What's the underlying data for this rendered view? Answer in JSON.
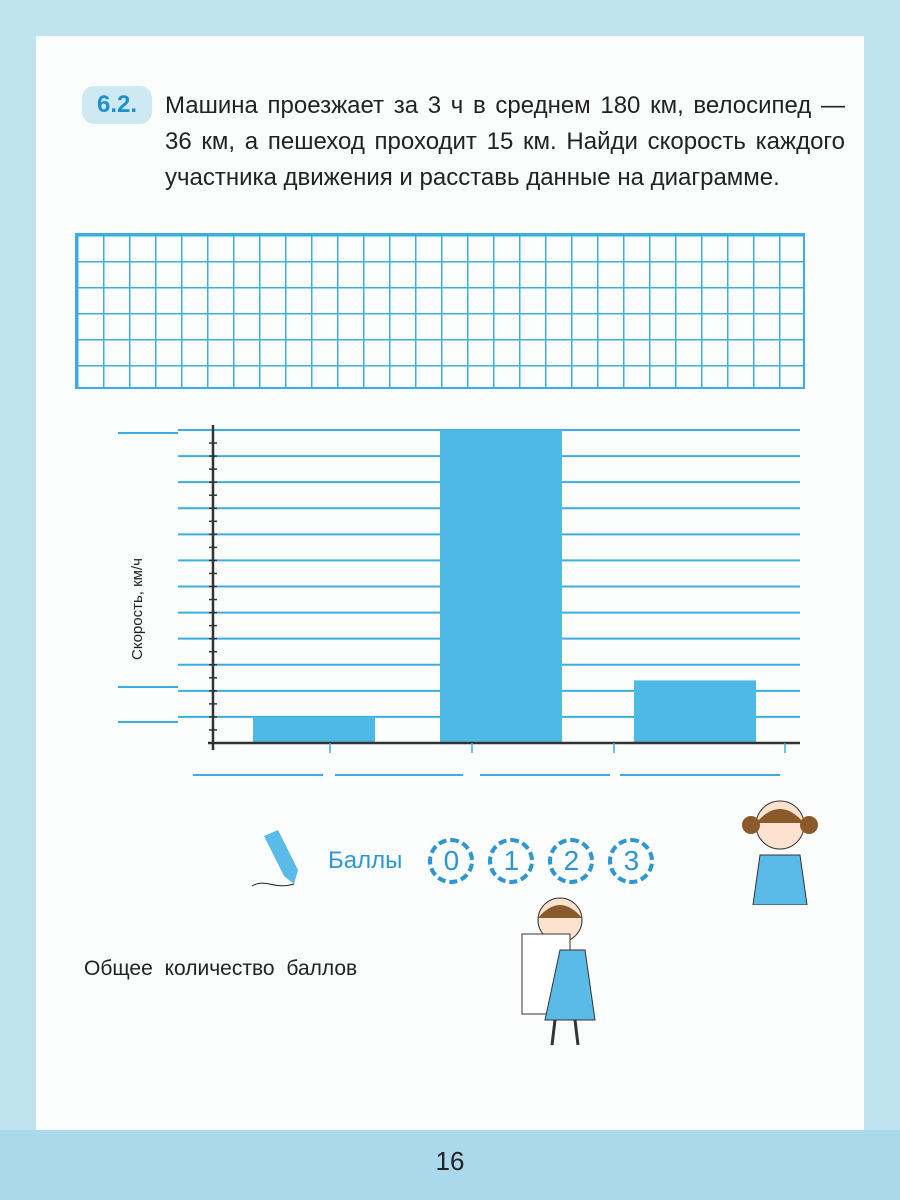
{
  "task": {
    "number": "6.2.",
    "text": "Машина проезжает за 3 ч в среднем 180 км, велосипед — 36 км, а пешеход проходит 15 км. Найди скорость каждого участника движения и расставь данные на диаграмме."
  },
  "chart_data": {
    "type": "bar",
    "ylabel": "Скорость, км/ч",
    "categories": [
      "",
      "",
      ""
    ],
    "values": [
      5,
      60,
      12
    ],
    "ylim": [
      0,
      60
    ],
    "grid": true,
    "colors": {
      "bar": "#4fb9e6",
      "line": "#3aaee0",
      "axis": "#333333"
    }
  },
  "scores": {
    "label": "Баллы",
    "options": [
      "0",
      "1",
      "2",
      "3"
    ]
  },
  "total_label": "Общее количество баллов",
  "page_number": "16",
  "icons": [
    "pencil-icon",
    "girl-pointing-illustration",
    "girl-with-sheet-illustration"
  ]
}
